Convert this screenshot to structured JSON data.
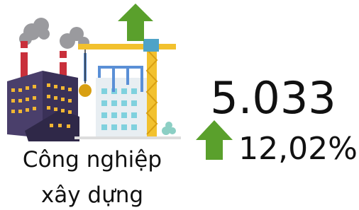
{
  "label": [
    "Công nghiệp",
    "xây dựng"
  ],
  "value": "5.033",
  "change": "12,02%"
}
